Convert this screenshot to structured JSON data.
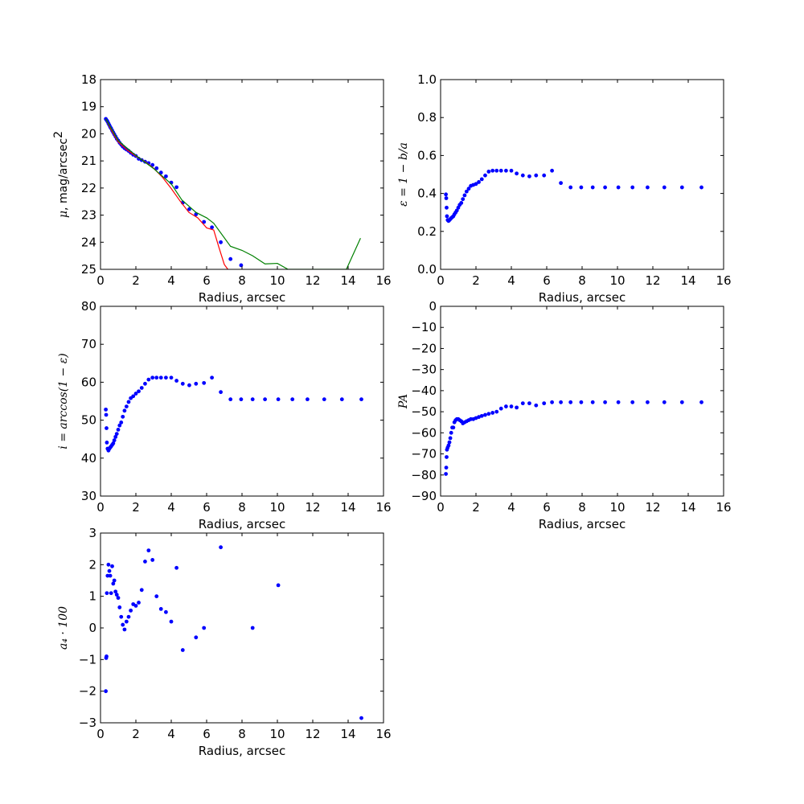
{
  "chart_data": [
    {
      "type": "scatter",
      "xlabel": "Radius, arcsec",
      "ylabel_prefix": "μ",
      "ylabel_text": ", mag/arcsec",
      "ylabel_sup": "2",
      "xlim": [
        0,
        16
      ],
      "ylim": [
        25,
        18
      ],
      "inverted_y": true,
      "xticks": [
        0,
        2,
        4,
        6,
        8,
        10,
        12,
        14,
        16
      ],
      "yticks": [
        18,
        19,
        20,
        21,
        22,
        23,
        24,
        25
      ],
      "series": [
        {
          "kind": "points",
          "color": "#0000ff",
          "x": [
            0.3,
            0.35,
            0.4,
            0.45,
            0.5,
            0.55,
            0.6,
            0.66,
            0.72,
            0.78,
            0.85,
            0.92,
            1.0,
            1.08,
            1.17,
            1.26,
            1.36,
            1.47,
            1.59,
            1.71,
            1.85,
            2.0,
            2.16,
            2.33,
            2.52,
            2.72,
            2.94,
            3.17,
            3.42,
            3.7,
            4.0,
            4.3,
            4.65,
            5.02,
            5.4,
            5.85,
            6.3,
            6.8,
            7.35,
            7.95
          ],
          "y": [
            19.45,
            19.5,
            19.55,
            19.62,
            19.68,
            19.75,
            19.8,
            19.88,
            19.95,
            20.02,
            20.1,
            20.18,
            20.25,
            20.33,
            20.4,
            20.47,
            20.53,
            20.58,
            20.63,
            20.7,
            20.77,
            20.82,
            20.92,
            20.97,
            21.03,
            21.08,
            21.15,
            21.27,
            21.43,
            21.57,
            21.8,
            21.97,
            22.54,
            22.78,
            22.97,
            23.25,
            23.45,
            24.0,
            24.62,
            24.85
          ]
        },
        {
          "kind": "line",
          "color": "#ff0000",
          "x": [
            0.3,
            0.6,
            1.0,
            1.5,
            2.0,
            2.5,
            3.0,
            3.5,
            4.0,
            4.5,
            5.0,
            5.5,
            6.0,
            6.4,
            6.7,
            7.0,
            7.2
          ],
          "y": [
            19.45,
            19.85,
            20.3,
            20.6,
            20.82,
            21.02,
            21.27,
            21.6,
            22.02,
            22.48,
            22.9,
            23.1,
            23.47,
            23.55,
            24.2,
            24.82,
            25.0
          ]
        },
        {
          "kind": "line",
          "color": "#008000",
          "x": [
            0.3,
            1.0,
            2.0,
            3.0,
            4.0,
            4.6,
            5.4,
            6.0,
            6.4,
            7.35,
            8.0,
            8.6,
            9.3,
            10.0,
            10.6,
            13.9,
            14.7
          ],
          "y": [
            19.45,
            20.25,
            20.8,
            21.28,
            21.85,
            22.44,
            22.9,
            23.1,
            23.3,
            24.15,
            24.3,
            24.5,
            24.8,
            24.78,
            25.0,
            25.0,
            23.85
          ]
        }
      ]
    },
    {
      "type": "scatter",
      "xlabel": "Radius, arcsec",
      "ylabel_tex": "ε = 1 − b/a",
      "xlim": [
        0,
        16
      ],
      "ylim": [
        0.0,
        1.0
      ],
      "xticks": [
        0,
        2,
        4,
        6,
        8,
        10,
        12,
        14,
        16
      ],
      "yticks": [
        0.0,
        0.2,
        0.4,
        0.6,
        0.8,
        1.0
      ],
      "ytick_labels": [
        "0.0",
        "0.2",
        "0.4",
        "0.6",
        "0.8",
        "1.0"
      ],
      "series": [
        {
          "kind": "points",
          "color": "#0000ff",
          "x": [
            0.3,
            0.32,
            0.34,
            0.36,
            0.4,
            0.45,
            0.5,
            0.55,
            0.6,
            0.66,
            0.72,
            0.78,
            0.85,
            0.92,
            1.0,
            1.08,
            1.17,
            1.26,
            1.36,
            1.47,
            1.59,
            1.71,
            1.85,
            2.0,
            2.16,
            2.33,
            2.52,
            2.72,
            2.94,
            3.17,
            3.42,
            3.7,
            4.0,
            4.3,
            4.65,
            5.02,
            5.4,
            5.85,
            6.3,
            6.8,
            7.35,
            7.95,
            8.6,
            9.3,
            10.05,
            10.85,
            11.7,
            12.65,
            13.65,
            14.75
          ],
          "y": [
            0.395,
            0.375,
            0.325,
            0.28,
            0.26,
            0.255,
            0.26,
            0.265,
            0.27,
            0.275,
            0.28,
            0.29,
            0.3,
            0.31,
            0.325,
            0.34,
            0.35,
            0.37,
            0.39,
            0.41,
            0.425,
            0.44,
            0.445,
            0.45,
            0.46,
            0.475,
            0.495,
            0.515,
            0.52,
            0.52,
            0.52,
            0.52,
            0.52,
            0.505,
            0.495,
            0.49,
            0.495,
            0.495,
            0.52,
            0.455,
            0.432,
            0.432,
            0.432,
            0.432,
            0.432,
            0.432,
            0.432,
            0.432,
            0.432,
            0.432
          ]
        }
      ]
    },
    {
      "type": "scatter",
      "xlabel": "Radius, arcsec",
      "ylabel_tex": "i = arccos(1 − ε)",
      "xlim": [
        0,
        16
      ],
      "ylim": [
        30,
        80
      ],
      "xticks": [
        0,
        2,
        4,
        6,
        8,
        10,
        12,
        14,
        16
      ],
      "yticks": [
        30,
        40,
        50,
        60,
        70,
        80
      ],
      "series": [
        {
          "kind": "points",
          "color": "#0000ff",
          "x": [
            0.3,
            0.32,
            0.34,
            0.36,
            0.4,
            0.45,
            0.5,
            0.55,
            0.6,
            0.66,
            0.72,
            0.78,
            0.85,
            0.92,
            1.0,
            1.08,
            1.17,
            1.26,
            1.36,
            1.47,
            1.59,
            1.71,
            1.85,
            2.0,
            2.16,
            2.33,
            2.52,
            2.72,
            2.94,
            3.17,
            3.42,
            3.7,
            4.0,
            4.3,
            4.65,
            5.02,
            5.4,
            5.85,
            6.3,
            6.8,
            7.35,
            7.95,
            8.6,
            9.3,
            10.05,
            10.85,
            11.7,
            12.65,
            13.65,
            14.75
          ],
          "y": [
            52.8,
            51.4,
            47.9,
            44.1,
            42.5,
            42.0,
            42.5,
            42.8,
            43.1,
            43.5,
            43.9,
            44.7,
            45.6,
            46.4,
            47.5,
            48.6,
            49.4,
            50.9,
            52.5,
            53.6,
            54.8,
            55.8,
            56.3,
            57.0,
            57.6,
            58.5,
            59.6,
            60.7,
            61.2,
            61.2,
            61.2,
            61.2,
            61.2,
            60.4,
            59.6,
            59.2,
            59.6,
            59.8,
            61.2,
            57.4,
            55.5,
            55.5,
            55.5,
            55.5,
            55.5,
            55.5,
            55.5,
            55.5,
            55.5,
            55.5
          ]
        }
      ]
    },
    {
      "type": "scatter",
      "xlabel": "Radius, arcsec",
      "ylabel_tex": "PA",
      "xlim": [
        0,
        16
      ],
      "ylim": [
        -90,
        0
      ],
      "xticks": [
        0,
        2,
        4,
        6,
        8,
        10,
        12,
        14,
        16
      ],
      "yticks": [
        0,
        -10,
        -20,
        -30,
        -40,
        -50,
        -60,
        -70,
        -80,
        -90
      ],
      "series": [
        {
          "kind": "points",
          "color": "#0000ff",
          "x": [
            0.3,
            0.32,
            0.34,
            0.36,
            0.4,
            0.45,
            0.5,
            0.55,
            0.6,
            0.66,
            0.72,
            0.78,
            0.85,
            0.92,
            1.0,
            1.08,
            1.17,
            1.26,
            1.36,
            1.47,
            1.59,
            1.71,
            1.85,
            2.0,
            2.16,
            2.33,
            2.52,
            2.72,
            2.94,
            3.17,
            3.42,
            3.7,
            4.0,
            4.3,
            4.65,
            5.02,
            5.4,
            5.85,
            6.3,
            6.8,
            7.35,
            7.95,
            8.6,
            9.3,
            10.05,
            10.85,
            11.7,
            12.65,
            13.65,
            14.75
          ],
          "y": [
            -79.5,
            -76.5,
            -71.5,
            -68.0,
            -67.0,
            -66.0,
            -64.5,
            -62.5,
            -60.0,
            -57.5,
            -57.5,
            -55.0,
            -54.0,
            -53.5,
            -53.5,
            -54.0,
            -54.5,
            -55.5,
            -55.0,
            -54.5,
            -54.0,
            -53.5,
            -53.5,
            -53.0,
            -52.5,
            -52.0,
            -51.5,
            -51.0,
            -50.5,
            -50.0,
            -48.5,
            -47.5,
            -47.5,
            -48.0,
            -46.0,
            -46.0,
            -47.0,
            -46.0,
            -45.5,
            -45.5,
            -45.5,
            -45.5,
            -45.5,
            -45.5,
            -45.5,
            -45.5,
            -45.5,
            -45.5,
            -45.5,
            -45.5
          ]
        }
      ]
    },
    {
      "type": "scatter",
      "xlabel": "Radius, arcsec",
      "ylabel_tex": "a₄ · 100",
      "xlim": [
        0,
        16
      ],
      "ylim": [
        -3,
        3
      ],
      "xticks": [
        0,
        2,
        4,
        6,
        8,
        10,
        12,
        14,
        16
      ],
      "yticks": [
        3,
        2,
        1,
        0,
        -1,
        -2,
        -3
      ],
      "ytick_labels": [
        "3",
        "2",
        "1",
        "0",
        "−1",
        "−2",
        "−3"
      ],
      "series": [
        {
          "kind": "points",
          "color": "#0000ff",
          "x": [
            0.3,
            0.32,
            0.34,
            0.36,
            0.4,
            0.45,
            0.5,
            0.55,
            0.6,
            0.66,
            0.72,
            0.78,
            0.85,
            0.92,
            1.0,
            1.08,
            1.17,
            1.26,
            1.36,
            1.47,
            1.59,
            1.71,
            1.85,
            2.0,
            2.16,
            2.33,
            2.52,
            2.72,
            2.94,
            3.17,
            3.42,
            3.7,
            4.0,
            4.3,
            4.65,
            5.02,
            5.4,
            5.85,
            6.3,
            6.8,
            7.35,
            7.95,
            8.6,
            9.3,
            10.05,
            10.85,
            11.7,
            12.65,
            13.65,
            14.75
          ],
          "y": [
            -2.0,
            -0.95,
            -0.9,
            1.1,
            1.65,
            2.0,
            1.8,
            1.65,
            1.1,
            1.95,
            1.4,
            1.5,
            1.15,
            1.05,
            0.95,
            0.65,
            0.35,
            0.1,
            -0.05,
            0.2,
            0.35,
            0.55,
            0.75,
            0.7,
            0.8,
            1.2,
            2.1,
            2.45,
            2.15,
            1.0,
            0.6,
            0.5,
            0.2,
            1.9,
            -0.7,
            null,
            -0.3,
            0.0,
            null,
            2.55,
            null,
            null,
            0.0,
            null,
            1.35,
            null,
            null,
            null,
            null,
            -2.85
          ]
        }
      ]
    }
  ]
}
